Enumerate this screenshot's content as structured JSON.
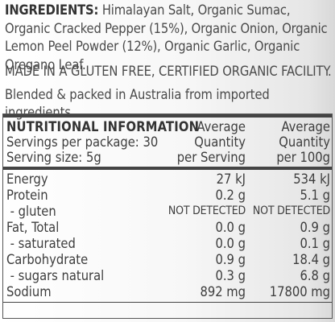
{
  "ingredients": {
    "heading": "INGREDIENTS:",
    "text": " Himalayan Salt, Organic Sumac, Organic Cracked Pepper (15%), Organic Onion, Organic Lemon Peel Powder (12%), Organic Garlic, Organic Oregano Leaf."
  },
  "facility": "MADE IN A GLUTEN FREE, CERTIFIED ORGANIC FACILITY.",
  "blended": "Blended & packed in Australia from imported ingredients.",
  "nutrition": {
    "title": "NUTRITIONAL INFORMATION",
    "servings_per_package": "Servings per package: 30",
    "serving_size": "Serving size: 5g",
    "col1_header": [
      "Average",
      "Quantity",
      "per Serving"
    ],
    "col2_header": [
      "Average",
      "Quantity",
      "per 100g"
    ],
    "rows": [
      {
        "name": "Energy",
        "per_serving": "27 kJ",
        "per_100g": "534 kJ"
      },
      {
        "name": "Protein",
        "per_serving": "0.2 g",
        "per_100g": "5.1 g"
      },
      {
        "name": " - gluten",
        "per_serving": "NOT DETECTED",
        "per_100g": "NOT DETECTED"
      },
      {
        "name": "Fat, Total",
        "per_serving": "0.0 g",
        "per_100g": "0.9 g"
      },
      {
        "name": " - saturated",
        "per_serving": "0.0 g",
        "per_100g": "0.1 g"
      },
      {
        "name": "Carbohydrate",
        "per_serving": "0.9 g",
        "per_100g": "18.4 g"
      },
      {
        "name": " - sugars natural",
        "per_serving": "0.3 g",
        "per_100g": "6.8 g"
      },
      {
        "name": "Sodium",
        "per_serving": "892 mg",
        "per_100g": "17800 mg"
      }
    ]
  }
}
